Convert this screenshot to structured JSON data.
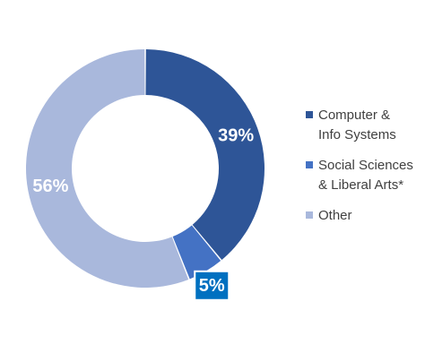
{
  "chart_data": {
    "type": "pie",
    "style": "donut",
    "title": "",
    "legend_position": "right",
    "slices": [
      {
        "label": "Computer &\nInfo Systems",
        "value": 39,
        "display": "39%",
        "color": "#2E5597"
      },
      {
        "label": "Social Sciences\n& Liberal Arts*",
        "value": 5,
        "display": "5%",
        "color": "#4472C4",
        "label_box_color": "#0070C0"
      },
      {
        "label": "Other",
        "value": 56,
        "display": "56%",
        "color": "#A9B8DC"
      }
    ]
  }
}
